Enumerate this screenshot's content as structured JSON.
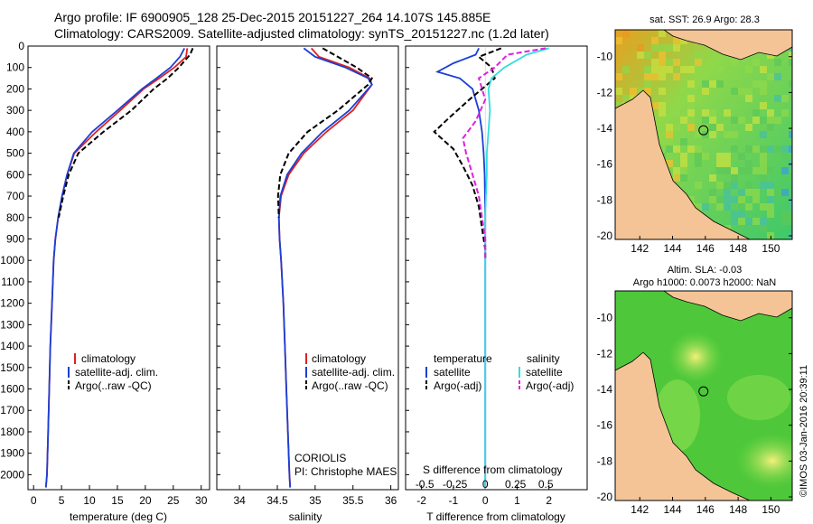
{
  "title_line1": "Argo profile: IF 6900905_128 25-Dec-2015 20151227_264 14.107S 145.885E",
  "title_line2": "Climatology: CARS2009. Satellite-adjusted climatology: synTS_20151227.nc (1.2d later)",
  "side_caption": "©IMOS 03-Jan-2016 20:39:11",
  "colors": {
    "climatology": "#e02020",
    "satellite": "#1a3fd6",
    "argo": "#000000",
    "sat_salinity": "#33dddd",
    "argo_salinity": "#e020e0",
    "land": "#f4c497"
  },
  "chart_data": [
    {
      "type": "line",
      "xlabel": "temperature (deg C)",
      "ylabel": "",
      "xlim": [
        -1,
        31.5
      ],
      "ylim": [
        2070,
        0
      ],
      "xticks": [
        0,
        5,
        10,
        15,
        20,
        25,
        30
      ],
      "yticks": [
        0,
        100,
        200,
        300,
        400,
        500,
        600,
        700,
        800,
        900,
        1000,
        1100,
        1200,
        1300,
        1400,
        1500,
        1600,
        1700,
        1800,
        1900,
        2000
      ],
      "legend": [
        "climatology",
        "satellite-adj. clim.",
        "Argo(..raw -QC)"
      ],
      "legend_placement": "lower-left",
      "series": [
        {
          "name": "climatology",
          "x": [
            27.5,
            27.3,
            25.2,
            22.5,
            19.7,
            15.5,
            11.2,
            7.3,
            6.0,
            5.1,
            4.4,
            3.9,
            3.6,
            3.3,
            3.0,
            2.8,
            2.6,
            2.4,
            2.2
          ],
          "y": [
            10,
            50,
            100,
            150,
            200,
            300,
            400,
            500,
            600,
            700,
            800,
            900,
            1000,
            1200,
            1400,
            1600,
            1800,
            2000,
            2060
          ]
        },
        {
          "name": "satellite-adj. clim.",
          "x": [
            27.0,
            26.2,
            24.5,
            22.0,
            19.4,
            15.0,
            10.5,
            7.2,
            6.0,
            5.1,
            4.4,
            3.9,
            3.6,
            3.3,
            3.0,
            2.8,
            2.6,
            2.4,
            2.2
          ],
          "y": [
            10,
            50,
            100,
            150,
            200,
            300,
            400,
            500,
            600,
            700,
            800,
            900,
            1000,
            1200,
            1400,
            1600,
            1800,
            2000,
            2060
          ]
        },
        {
          "name": "Argo(..raw -QC)",
          "x": [
            28.5,
            28.0,
            26.0,
            24.0,
            21.5,
            17.5,
            12.5,
            8.0,
            6.3,
            5.3,
            4.5
          ],
          "y": [
            10,
            40,
            100,
            150,
            200,
            300,
            400,
            500,
            600,
            700,
            800
          ]
        }
      ],
      "annotations": []
    },
    {
      "type": "line",
      "xlabel": "salinity",
      "ylabel": "",
      "xlim": [
        33.7,
        36.1
      ],
      "ylim": [
        2070,
        0
      ],
      "xticks": [
        34,
        34.5,
        35,
        35.5,
        36
      ],
      "legend": [
        "climatology",
        "satellite-adj. clim.",
        "Argo(..raw -QC)"
      ],
      "legend_placement": "lower-right",
      "series": [
        {
          "name": "climatology",
          "x": [
            34.95,
            35.05,
            35.45,
            35.72,
            35.75,
            35.5,
            35.15,
            34.85,
            34.65,
            34.55,
            34.52,
            34.53,
            34.55,
            34.58,
            34.6,
            34.62,
            34.64,
            34.66,
            34.67
          ],
          "y": [
            10,
            50,
            100,
            150,
            180,
            300,
            400,
            500,
            600,
            700,
            800,
            900,
            1000,
            1200,
            1400,
            1600,
            1800,
            2000,
            2060
          ]
        },
        {
          "name": "satellite-adj. clim.",
          "x": [
            34.85,
            35.0,
            35.4,
            35.7,
            35.75,
            35.45,
            35.1,
            34.82,
            34.63,
            34.54,
            34.52,
            34.53,
            34.55,
            34.58,
            34.6,
            34.62,
            34.64,
            34.66,
            34.67
          ],
          "y": [
            10,
            50,
            100,
            150,
            180,
            300,
            400,
            500,
            600,
            700,
            800,
            900,
            1000,
            1200,
            1400,
            1600,
            1800,
            2000,
            2060
          ]
        },
        {
          "name": "Argo(..raw -QC)",
          "x": [
            35.1,
            35.3,
            35.55,
            35.75,
            35.7,
            35.3,
            34.9,
            34.65,
            34.54,
            34.51,
            34.52
          ],
          "y": [
            10,
            50,
            100,
            150,
            180,
            300,
            400,
            500,
            600,
            700,
            800
          ]
        }
      ],
      "annotations": [
        "CORIOLIS",
        "PI: Christophe MAES"
      ]
    },
    {
      "type": "line",
      "xlabel": "T difference from climatology",
      "xlabel2": "S difference from climatology",
      "ylabel": "",
      "xlim": [
        -2.5,
        3.2
      ],
      "ylim": [
        2070,
        0
      ],
      "xticks": [
        -2,
        -1,
        0,
        1,
        2
      ],
      "xticks_top": [
        "-0.5",
        "-0.25",
        "0",
        "0.25",
        "0.5"
      ],
      "legend_temperature_heading": "temperature",
      "legend_salinity_heading": "salinity",
      "legend": [
        "satellite",
        "Argo(-adj)",
        "satellite",
        "Argo(-adj)"
      ],
      "series": [
        {
          "name": "temperature satellite",
          "x": [
            -0.2,
            -0.3,
            -1.0,
            -1.5,
            -0.8,
            -0.4,
            -0.2,
            -0.1,
            -0.05,
            -0.02,
            0,
            0,
            0,
            0
          ],
          "y": [
            10,
            40,
            80,
            120,
            150,
            200,
            300,
            400,
            500,
            600,
            800,
            1000,
            1500,
            2060
          ]
        },
        {
          "name": "temperature Argo(-adj)",
          "x": [
            0.5,
            -0.2,
            0.2,
            0.3,
            -0.5,
            -1.1,
            -1.6,
            -1.0,
            -0.7,
            -0.4,
            -0.2,
            -0.1,
            0,
            0
          ],
          "y": [
            10,
            50,
            100,
            150,
            250,
            330,
            400,
            480,
            560,
            650,
            750,
            850,
            950,
            1000
          ]
        },
        {
          "name": "salinity satellite",
          "x": [
            2.0,
            1.3,
            0.6,
            0.2,
            0.1,
            0.15,
            0.1,
            0.05,
            0.05,
            0.02,
            0,
            0,
            0,
            0,
            0
          ],
          "y": [
            10,
            40,
            100,
            150,
            200,
            300,
            400,
            500,
            600,
            700,
            800,
            1000,
            1400,
            1800,
            2060
          ]
        },
        {
          "name": "salinity Argo(-adj)",
          "x": [
            1.9,
            0.7,
            0.3,
            -0.2,
            0.0,
            -0.3,
            -0.7,
            -0.6,
            -0.4,
            -0.2,
            -0.1,
            0,
            0
          ],
          "y": [
            10,
            40,
            100,
            150,
            250,
            350,
            430,
            500,
            600,
            700,
            800,
            900,
            1000
          ]
        }
      ]
    },
    {
      "type": "heatmap",
      "title": "sat. SST: 26.9 Argo: 28.3",
      "xticks": [
        142,
        144,
        146,
        148,
        150
      ],
      "yticks": [
        -10,
        -12,
        -14,
        -16,
        -18,
        -20
      ],
      "xlim": [
        140.5,
        151.3
      ],
      "ylim": [
        -20.2,
        -8.5
      ],
      "marker": [
        145.885,
        -14.107
      ]
    },
    {
      "type": "heatmap",
      "title": "Altim. SLA: -0.03",
      "subtitle": "Argo h1000: 0.0073 h2000: NaN",
      "xticks": [
        142,
        144,
        146,
        148,
        150
      ],
      "yticks": [
        -10,
        -12,
        -14,
        -16,
        -18,
        -20
      ],
      "xlim": [
        140.5,
        151.3
      ],
      "ylim": [
        -20.2,
        -8.5
      ],
      "marker": [
        145.885,
        -14.107
      ]
    }
  ]
}
